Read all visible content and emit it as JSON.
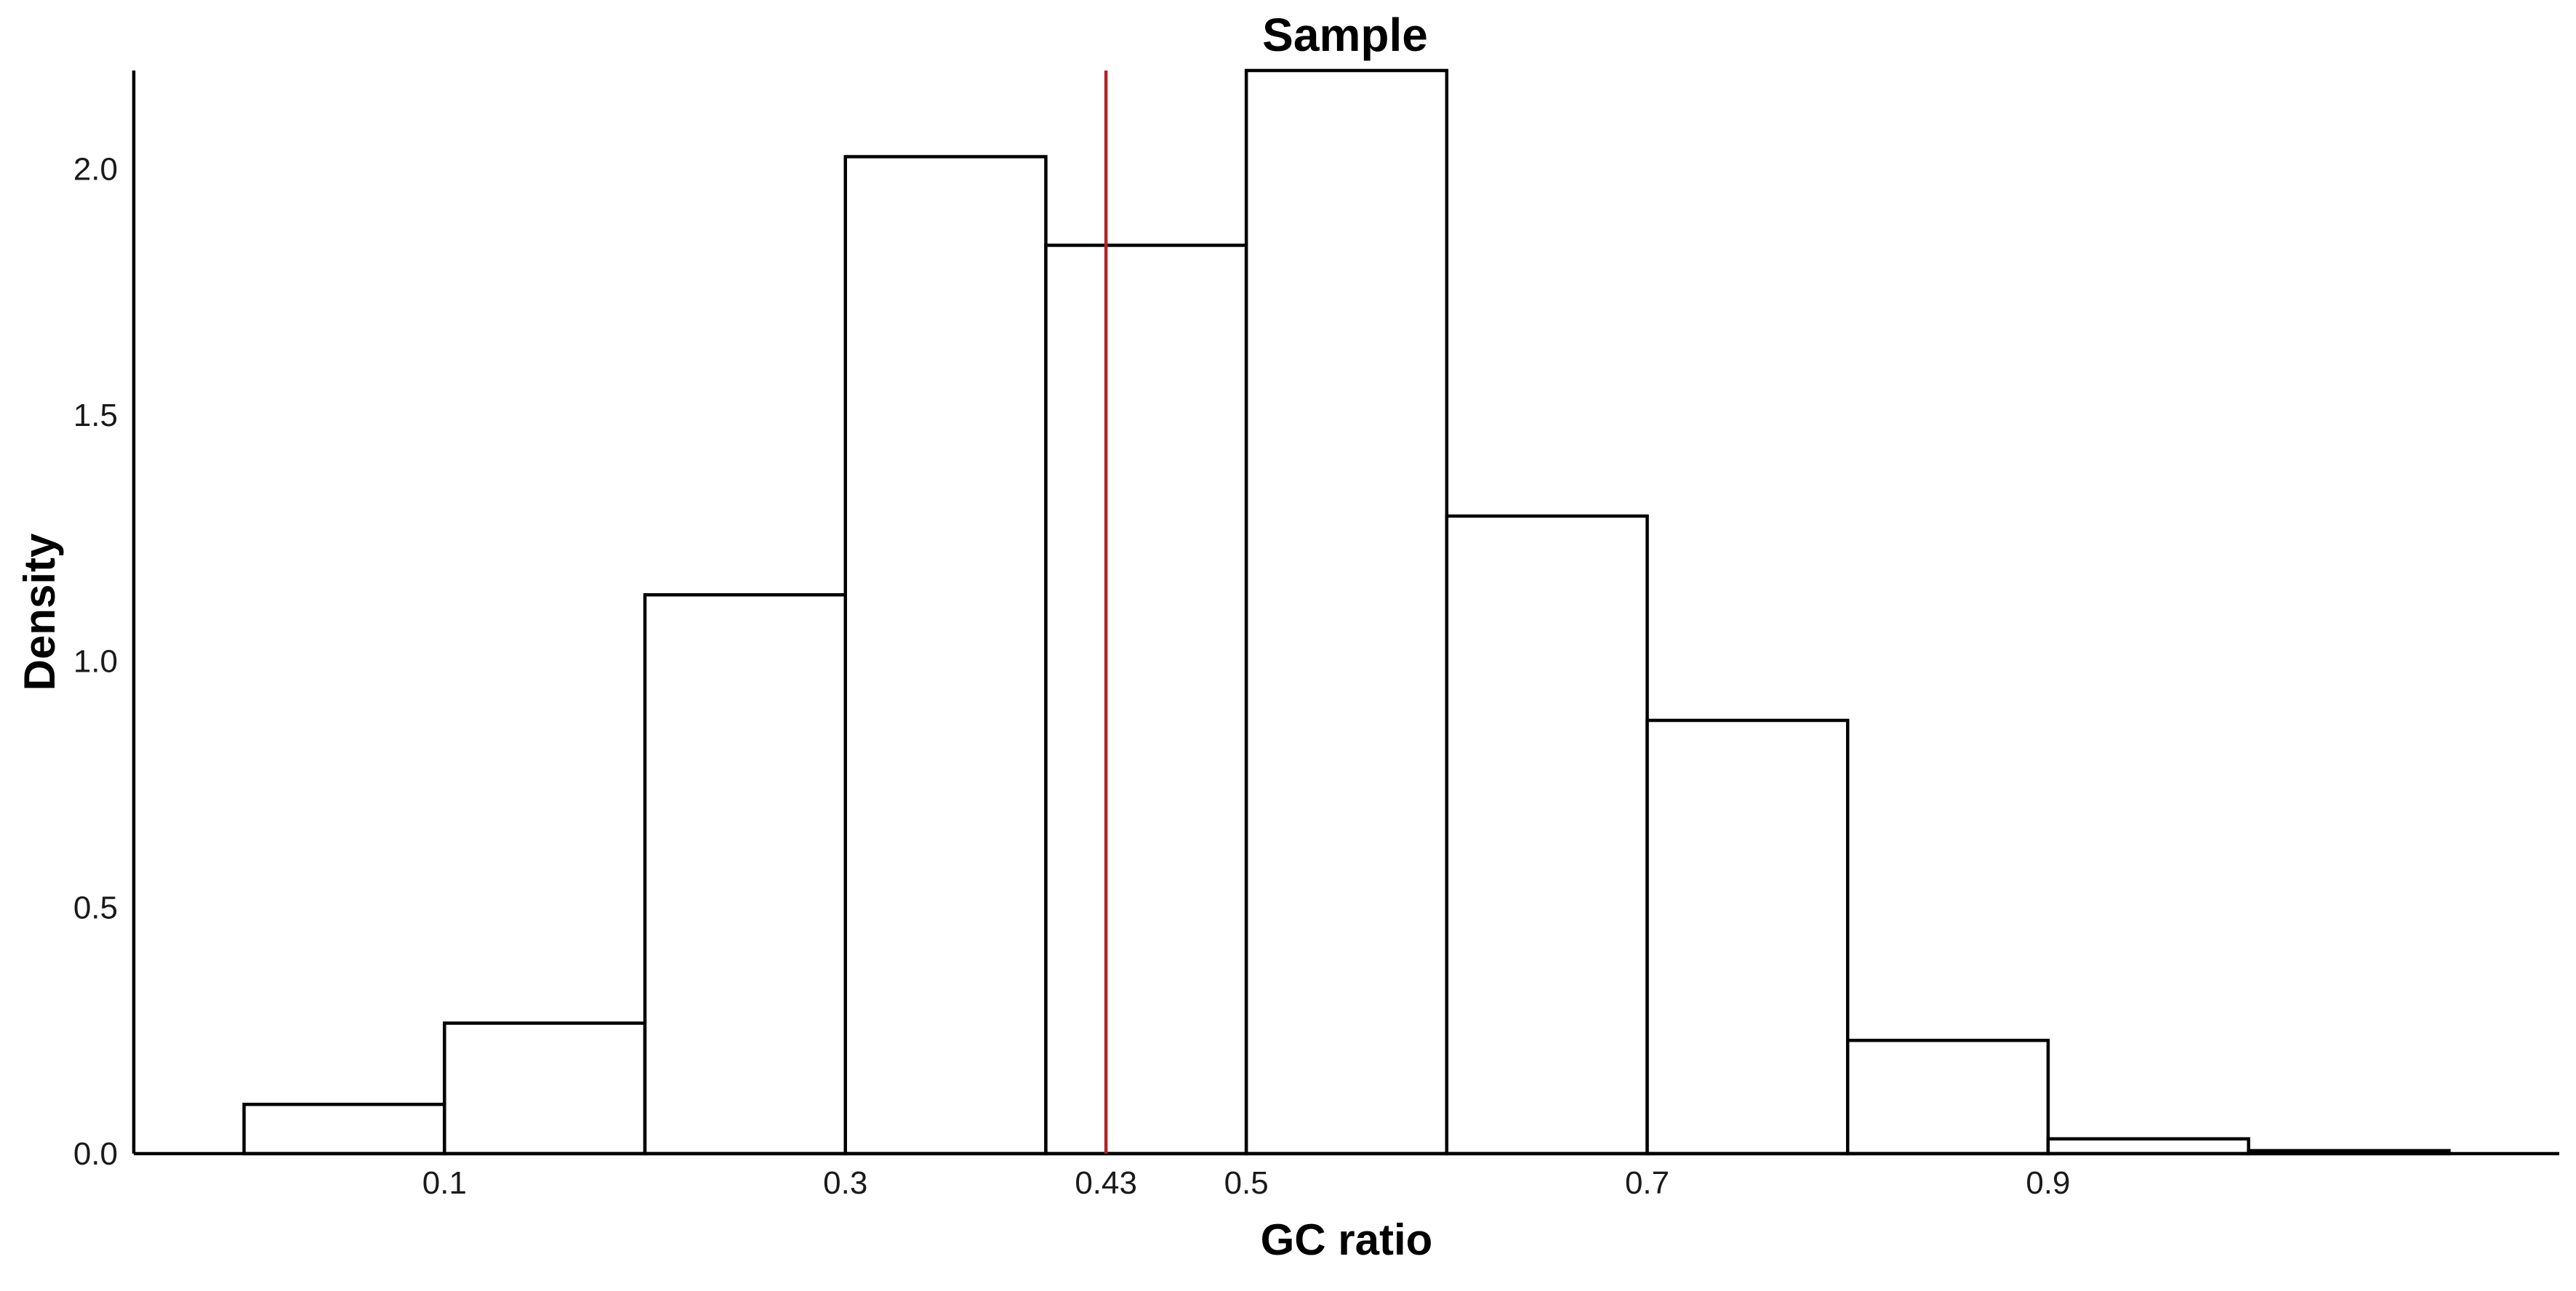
{
  "chart_data": {
    "type": "bar",
    "title": "Sample",
    "xlabel": "GC ratio",
    "ylabel": "Density",
    "xlim": [
      -0.055,
      1.155
    ],
    "ylim": [
      0,
      2.2
    ],
    "bin_width": 0.1,
    "bins": [
      {
        "start": 0.0,
        "end": 0.1,
        "density": 0.1
      },
      {
        "start": 0.1,
        "end": 0.2,
        "density": 0.265
      },
      {
        "start": 0.2,
        "end": 0.3,
        "density": 1.135
      },
      {
        "start": 0.3,
        "end": 0.4,
        "density": 2.025
      },
      {
        "start": 0.4,
        "end": 0.5,
        "density": 1.845
      },
      {
        "start": 0.5,
        "end": 0.6,
        "density": 2.2
      },
      {
        "start": 0.6,
        "end": 0.7,
        "density": 1.295
      },
      {
        "start": 0.7,
        "end": 0.8,
        "density": 0.88
      },
      {
        "start": 0.8,
        "end": 0.9,
        "density": 0.23
      },
      {
        "start": 0.9,
        "end": 1.0,
        "density": 0.03
      },
      {
        "start": 1.0,
        "end": 1.1,
        "density": 0.006
      }
    ],
    "x_ticks": [
      {
        "value": 0.1,
        "label": "0.1"
      },
      {
        "value": 0.3,
        "label": "0.3"
      },
      {
        "value": 0.43,
        "label": "0.43"
      },
      {
        "value": 0.5,
        "label": "0.5"
      },
      {
        "value": 0.7,
        "label": "0.7"
      },
      {
        "value": 0.9,
        "label": "0.9"
      }
    ],
    "y_ticks": [
      {
        "value": 0.0,
        "label": "0.0"
      },
      {
        "value": 0.5,
        "label": "0.5"
      },
      {
        "value": 1.0,
        "label": "1.0"
      },
      {
        "value": 1.5,
        "label": "1.5"
      },
      {
        "value": 2.0,
        "label": "2.0"
      }
    ],
    "reference_line": {
      "x": 0.43,
      "color": "#b2222a"
    },
    "bar_fill": "#ffffff",
    "bar_stroke": "#000000",
    "grid": false,
    "legend": "none"
  }
}
